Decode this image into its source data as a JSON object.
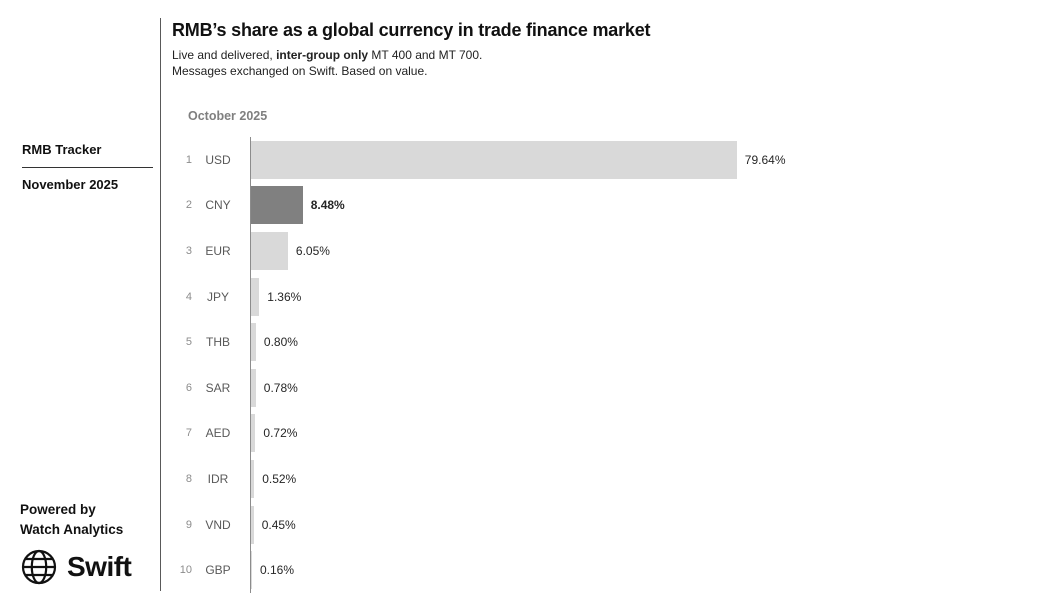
{
  "sidebar": {
    "tracker_title": "RMB Tracker",
    "tracker_date": "November 2025",
    "powered_by_line1": "Powered by",
    "powered_by_line2": "Watch Analytics",
    "logo_text": "Swift"
  },
  "header": {
    "title": "RMB’s share as a global currency in trade finance market",
    "subtitle_prefix": "Live and delivered, ",
    "subtitle_bold": "inter-group only",
    "subtitle_suffix": " MT 400 and MT 700.",
    "subtitle_line2": "Messages exchanged on Swift. Based on value."
  },
  "chart_data": {
    "type": "bar",
    "orientation": "horizontal",
    "period_label": "October 2025",
    "ranks": [
      1,
      2,
      3,
      4,
      5,
      6,
      7,
      8,
      9,
      10
    ],
    "categories": [
      "USD",
      "CNY",
      "EUR",
      "JPY",
      "THB",
      "SAR",
      "AED",
      "IDR",
      "VND",
      "GBP"
    ],
    "values": [
      79.64,
      8.48,
      6.05,
      1.36,
      0.8,
      0.78,
      0.72,
      0.52,
      0.45,
      0.16
    ],
    "value_labels": [
      "79.64%",
      "8.48%",
      "6.05%",
      "1.36%",
      "0.80%",
      "0.78%",
      "0.72%",
      "0.52%",
      "0.45%",
      "0.16%"
    ],
    "highlighted_category": "CNY",
    "bar_color": "#d9d9d9",
    "highlight_color": "#808080",
    "xlim": [
      0,
      100
    ],
    "grid": false,
    "legend": false
  }
}
